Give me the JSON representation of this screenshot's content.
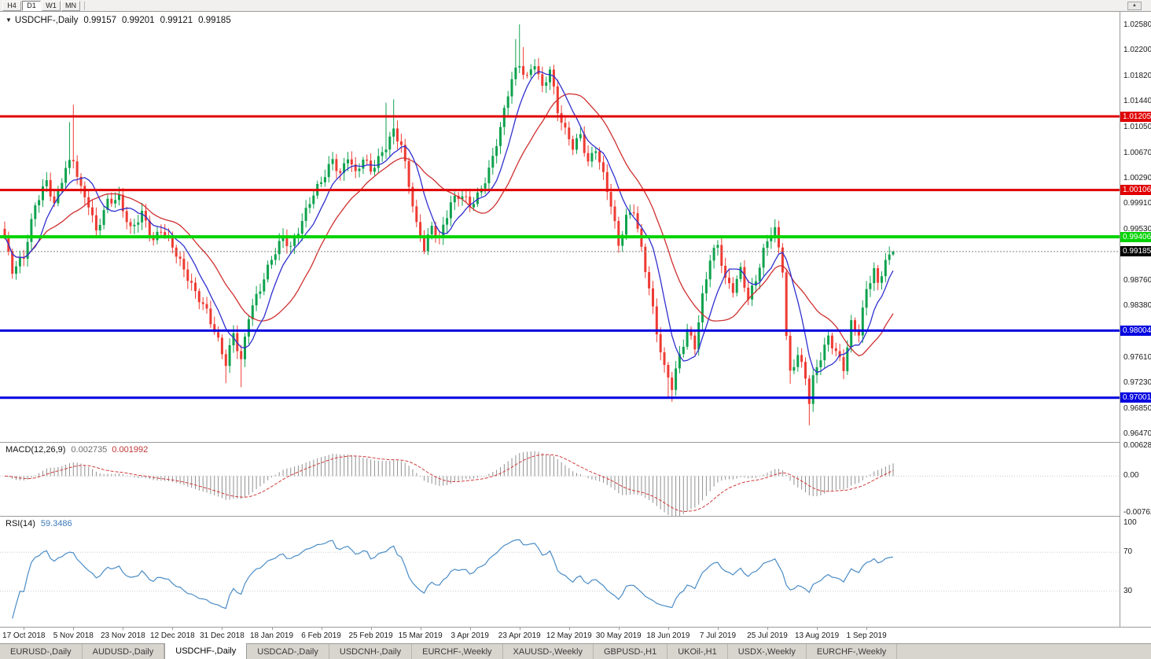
{
  "toolbar": {
    "timeframes": [
      {
        "label": "H4",
        "active": false
      },
      {
        "label": "D1",
        "active": true
      },
      {
        "label": "W1",
        "active": false
      },
      {
        "label": "MN",
        "active": false
      }
    ],
    "scroll_button_glyph": "▲"
  },
  "chart_header": {
    "collapse_icon": "▼",
    "symbol_label": "USDCHF-,Daily",
    "open": "0.99157",
    "high": "0.99201",
    "low": "0.99121",
    "close": "0.99185"
  },
  "price_scale_labels": [
    "1.02580",
    "1.02200",
    "1.01820",
    "1.01440",
    "1.01050",
    "1.00670",
    "1.00290",
    "0.99910",
    "0.99530",
    "0.99150",
    "0.98760",
    "0.98380",
    "0.98000",
    "0.97610",
    "0.97230",
    "0.96850",
    "0.96470"
  ],
  "levels": [
    {
      "price": 1.01205,
      "label": "1.01205",
      "color": "#e00000",
      "width": 3
    },
    {
      "price": 1.00106,
      "label": "1.00106",
      "color": "#e00000",
      "width": 3
    },
    {
      "price": 0.99406,
      "label": "0.99406",
      "color": "#00d300",
      "width": 4
    },
    {
      "price": 0.98004,
      "label": "0.98004",
      "color": "#0000e0",
      "width": 3
    },
    {
      "price": 0.97001,
      "label": "0.97001",
      "color": "#0000e0",
      "width": 3
    }
  ],
  "current_price": {
    "value": 0.99185,
    "label": "0.99185",
    "box_color": "#000000"
  },
  "macd_panel": {
    "title": "MACD(12,26,9)",
    "value_main": "0.002735",
    "value_signal": "0.001992",
    "scale": [
      {
        "label": "0.006286",
        "value": 0.006286
      },
      {
        "label": "0.00",
        "value": 0
      },
      {
        "label": "-0.00762",
        "value": -0.00762
      }
    ]
  },
  "rsi_panel": {
    "title": "RSI(14)",
    "value": "59.3486",
    "scale": [
      {
        "label": "100",
        "value": 100
      },
      {
        "label": "70",
        "value": 70
      },
      {
        "label": "30",
        "value": 30
      }
    ]
  },
  "tabs": [
    {
      "label": "EURUSD-,Daily",
      "active": false
    },
    {
      "label": "AUDUSD-,Daily",
      "active": false
    },
    {
      "label": "USDCHF-,Daily",
      "active": true
    },
    {
      "label": "USDCAD-,Daily",
      "active": false
    },
    {
      "label": "USDCNH-,Daily",
      "active": false
    },
    {
      "label": "EURCHF-,Weekly",
      "active": false
    },
    {
      "label": "XAUUSD-,Weekly",
      "active": false
    },
    {
      "label": "GBPUSD-,H1",
      "active": false
    },
    {
      "label": "UKOil-,H1",
      "active": false
    },
    {
      "label": "USDX-,Weekly",
      "active": false
    },
    {
      "label": "EURCHF-,Weekly",
      "active": false
    }
  ],
  "colors": {
    "up_candle": "#0ea24e",
    "down_candle": "#ee3b33",
    "ma_fast": "#2f2fd0",
    "ma_slow": "#cf2f2f",
    "macd_hist": "#909090",
    "macd_signal": "#d23b3b",
    "rsi_line": "#4a8cc7",
    "current_line": "#888888",
    "level_dotted": "#c9c9c9"
  },
  "chart_data": {
    "type": "candlestick",
    "symbol": "USDCHF",
    "timeframe": "Daily",
    "title": "USDCHF-,Daily",
    "candle_count": 234,
    "price_axis": {
      "top": 1.0258,
      "bottom": 0.9647,
      "tick_step": 0.0038
    },
    "ohlc_last": {
      "open": 0.99157,
      "high": 0.99201,
      "low": 0.99121,
      "close": 0.99185
    },
    "horizontal_lines": [
      1.01205,
      1.00106,
      0.99406,
      0.98004,
      0.97001
    ],
    "overlays": [
      {
        "name": "ma-fast",
        "period": 8,
        "color_key": "ma_fast"
      },
      {
        "name": "ma-slow",
        "period": 20,
        "color_key": "ma_slow"
      }
    ],
    "macd": {
      "params": [
        12,
        26,
        9
      ],
      "axis_max": 0.006286,
      "axis_min": -0.00762,
      "last_main": 0.002735,
      "last_signal": 0.001992
    },
    "rsi": {
      "period": 14,
      "last": 59.3486,
      "levels": [
        70,
        30
      ],
      "axis": [
        0,
        100
      ]
    },
    "close_anchors": [
      [
        0,
        0.9935
      ],
      [
        2,
        0.989
      ],
      [
        5,
        0.9915
      ],
      [
        8,
        0.999
      ],
      [
        11,
        1.002
      ],
      [
        13,
        0.9985
      ],
      [
        16,
        1.0045
      ],
      [
        18,
        1.006
      ],
      [
        20,
        1.0015
      ],
      [
        22,
        0.999
      ],
      [
        24,
        0.9945
      ],
      [
        27,
        0.999
      ],
      [
        30,
        1.0
      ],
      [
        33,
        0.9955
      ],
      [
        36,
        0.9975
      ],
      [
        39,
        0.993
      ],
      [
        41,
        0.995
      ],
      [
        44,
        0.993
      ],
      [
        47,
        0.9895
      ],
      [
        50,
        0.9855
      ],
      [
        53,
        0.9825
      ],
      [
        56,
        0.9785
      ],
      [
        58,
        0.9755
      ],
      [
        60,
        0.98
      ],
      [
        62,
        0.9755
      ],
      [
        64,
        0.982
      ],
      [
        67,
        0.986
      ],
      [
        70,
        0.991
      ],
      [
        73,
        0.9945
      ],
      [
        75,
        0.9925
      ],
      [
        78,
        0.996
      ],
      [
        80,
        0.999
      ],
      [
        83,
        1.0025
      ],
      [
        86,
        1.006
      ],
      [
        88,
        1.0035
      ],
      [
        90,
        1.006
      ],
      [
        92,
        1.003
      ],
      [
        94,
        1.0055
      ],
      [
        96,
        1.004
      ],
      [
        99,
        1.007
      ],
      [
        102,
        1.01
      ],
      [
        104,
        1.0075
      ],
      [
        106,
        1.0015
      ],
      [
        108,
        0.9955
      ],
      [
        110,
        0.9925
      ],
      [
        112,
        0.996
      ],
      [
        114,
        0.994
      ],
      [
        117,
        0.999
      ],
      [
        120,
        1.0
      ],
      [
        122,
        0.9985
      ],
      [
        125,
        1.0015
      ],
      [
        128,
        1.006
      ],
      [
        131,
        1.0125
      ],
      [
        133,
        1.0175
      ],
      [
        135,
        1.0195
      ],
      [
        137,
        1.018
      ],
      [
        139,
        1.0205
      ],
      [
        141,
        1.0165
      ],
      [
        143,
        1.019
      ],
      [
        145,
        1.0125
      ],
      [
        147,
        1.0095
      ],
      [
        149,
        1.0075
      ],
      [
        151,
        1.0095
      ],
      [
        153,
        1.0055
      ],
      [
        155,
        1.0075
      ],
      [
        157,
        1.003
      ],
      [
        159,
        0.9985
      ],
      [
        161,
        0.9925
      ],
      [
        163,
        0.997
      ],
      [
        165,
        0.9985
      ],
      [
        167,
        0.9925
      ],
      [
        169,
        0.9865
      ],
      [
        171,
        0.9795
      ],
      [
        173,
        0.974
      ],
      [
        175,
        0.9715
      ],
      [
        177,
        0.9765
      ],
      [
        179,
        0.9805
      ],
      [
        181,
        0.978
      ],
      [
        183,
        0.985
      ],
      [
        185,
        0.9905
      ],
      [
        187,
        0.9925
      ],
      [
        189,
        0.9875
      ],
      [
        191,
        0.9865
      ],
      [
        193,
        0.9895
      ],
      [
        195,
        0.985
      ],
      [
        197,
        0.9875
      ],
      [
        199,
        0.9915
      ],
      [
        201,
        0.9945
      ],
      [
        202,
        0.995
      ],
      [
        204,
        0.9895
      ],
      [
        205,
        0.9795
      ],
      [
        206,
        0.974
      ],
      [
        208,
        0.9768
      ],
      [
        210,
        0.973
      ],
      [
        211,
        0.9692
      ],
      [
        212,
        0.9725
      ],
      [
        214,
        0.9758
      ],
      [
        216,
        0.979
      ],
      [
        218,
        0.9772
      ],
      [
        220,
        0.9748
      ],
      [
        222,
        0.9812
      ],
      [
        224,
        0.9795
      ],
      [
        226,
        0.9858
      ],
      [
        228,
        0.9888
      ],
      [
        229,
        0.9868
      ],
      [
        231,
        0.9908
      ],
      [
        232,
        0.9913
      ],
      [
        233,
        0.99185
      ]
    ],
    "wick_overrides": {
      "17": {
        "high": 1.0112
      },
      "18": {
        "high": 1.0138
      },
      "58": {
        "low": 0.9722
      },
      "62": {
        "low": 0.9716
      },
      "100": {
        "high": 1.0141
      },
      "102": {
        "high": 1.0146
      },
      "134": {
        "high": 1.0236
      },
      "135": {
        "high": 1.0258
      },
      "136": {
        "high": 1.0224
      },
      "174": {
        "low": 0.9701
      },
      "175": {
        "low": 0.9694
      },
      "206": {
        "low": 0.9721
      },
      "211": {
        "low": 0.9659
      },
      "220": {
        "low": 0.9728
      },
      "233": {
        "high": 0.99201,
        "low": 0.99121
      }
    },
    "time_ticks": [
      {
        "i": 5,
        "label": "17 Oct 2018"
      },
      {
        "i": 18,
        "label": "5 Nov 2018"
      },
      {
        "i": 31,
        "label": "23 Nov 2018"
      },
      {
        "i": 44,
        "label": "12 Dec 2018"
      },
      {
        "i": 57,
        "label": "31 Dec 2018"
      },
      {
        "i": 70,
        "label": "18 Jan 2019"
      },
      {
        "i": 83,
        "label": "6 Feb 2019"
      },
      {
        "i": 96,
        "label": "25 Feb 2019"
      },
      {
        "i": 109,
        "label": "15 Mar 2019"
      },
      {
        "i": 122,
        "label": "3 Apr 2019"
      },
      {
        "i": 135,
        "label": "23 Apr 2019"
      },
      {
        "i": 148,
        "label": "12 May 2019"
      },
      {
        "i": 161,
        "label": "30 May 2019"
      },
      {
        "i": 174,
        "label": "18 Jun 2019"
      },
      {
        "i": 187,
        "label": "7 Jul 2019"
      },
      {
        "i": 200,
        "label": "25 Jul 2019"
      },
      {
        "i": 213,
        "label": "13 Aug 2019"
      },
      {
        "i": 226,
        "label": "1 Sep 2019"
      }
    ]
  }
}
